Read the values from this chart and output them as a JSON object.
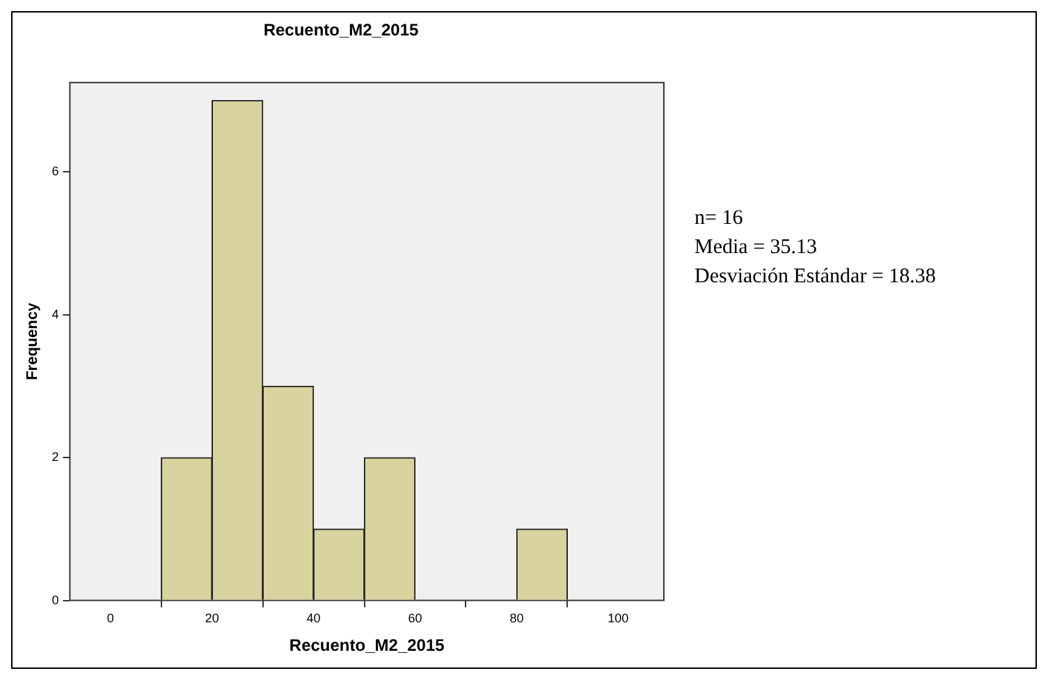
{
  "chart_data": {
    "type": "histogram",
    "title": "Recuento_M2_2015",
    "xlabel": "Recuento_M2_2015",
    "ylabel": "Frequency",
    "bins": [
      10,
      20,
      30,
      40,
      50,
      60,
      70,
      80,
      90
    ],
    "values": [
      2,
      7,
      3,
      1,
      2,
      0,
      0,
      1
    ],
    "color": "#d9d3a0",
    "xlim": [
      -8,
      109
    ],
    "xticks": [
      0,
      20,
      40,
      60,
      80,
      100
    ],
    "ylim": [
      0,
      7.25
    ],
    "yticks": [
      0,
      2,
      4,
      6
    ],
    "grid": false,
    "legend": false,
    "annotations": [
      "n= 16",
      "Media = 35.13",
      "Desviación Estándar = 18.38"
    ]
  }
}
